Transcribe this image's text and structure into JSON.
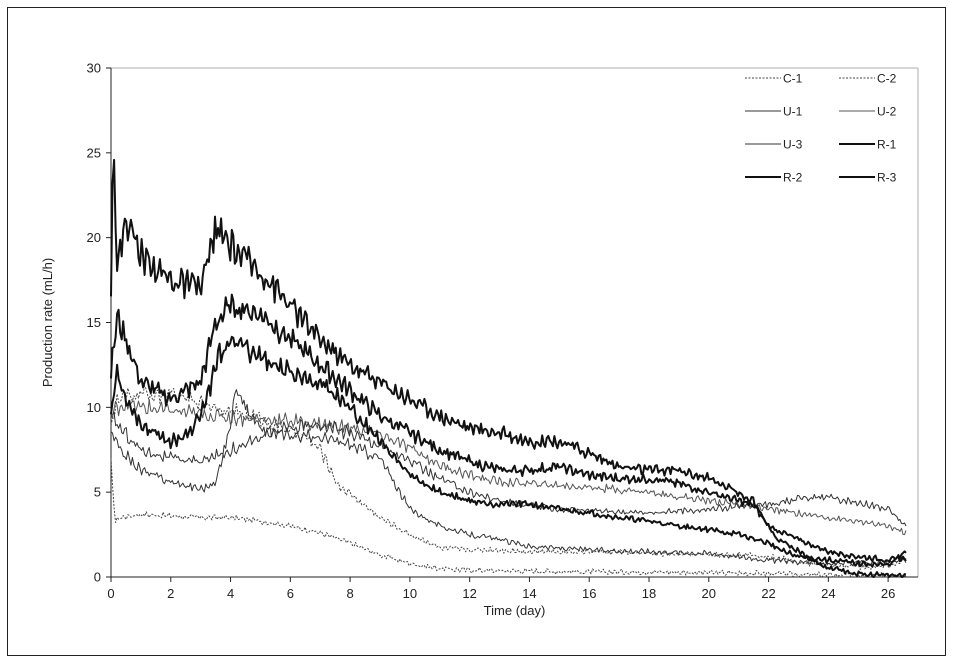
{
  "chart_data": {
    "type": "line",
    "title": "",
    "xlabel": "Time (day)",
    "ylabel": "Production rate (mL/h)",
    "xlim": [
      0,
      27
    ],
    "ylim": [
      0,
      30
    ],
    "xticks": [
      0,
      2,
      4,
      6,
      8,
      10,
      12,
      14,
      16,
      18,
      20,
      22,
      24,
      26
    ],
    "yticks": [
      0,
      5,
      10,
      15,
      20,
      25,
      30
    ],
    "grid": false,
    "legend_position": "top-right",
    "series": [
      {
        "name": "C-1",
        "style": "dashed",
        "width": 1.0,
        "color": "#444444",
        "x": [
          0,
          0.05,
          0.15,
          0.3,
          1,
          2,
          3,
          4,
          5,
          6,
          7,
          8,
          9,
          10,
          11,
          12,
          14,
          16,
          18,
          20,
          22,
          23,
          24,
          25,
          26,
          26.6
        ],
        "y": [
          6.8,
          5.2,
          3.3,
          3.5,
          3.7,
          3.6,
          3.5,
          3.5,
          3.3,
          3.0,
          2.6,
          2.0,
          1.3,
          0.8,
          0.5,
          0.4,
          0.35,
          0.3,
          0.3,
          0.25,
          0.2,
          0.15,
          0.1,
          0.1,
          0.1,
          0.1
        ]
      },
      {
        "name": "C-2",
        "style": "dashed",
        "width": 1.0,
        "color": "#444444",
        "x": [
          0,
          0.2,
          0.5,
          1,
          2,
          3,
          4,
          5,
          6,
          6.5,
          7,
          7.3,
          7.6,
          8,
          8.5,
          9,
          10,
          10.7,
          11,
          12,
          13,
          14,
          16,
          18,
          20,
          21,
          22,
          23,
          24,
          25,
          26,
          26.6
        ],
        "y": [
          9.0,
          10.3,
          10.6,
          10.8,
          10.7,
          10.3,
          9.8,
          9.3,
          8.6,
          8.2,
          7.5,
          6.5,
          5.4,
          4.9,
          4.2,
          3.5,
          2.5,
          2.0,
          1.7,
          1.6,
          1.6,
          1.5,
          1.5,
          1.4,
          1.3,
          1.3,
          1.2,
          0.9,
          0.7,
          0.6,
          0.6,
          1.0
        ]
      },
      {
        "name": "U-1",
        "style": "solid",
        "width": 1.0,
        "color": "#333333",
        "x": [
          0,
          0.3,
          1,
          2,
          3,
          3.5,
          4,
          4.2,
          4.5,
          5,
          6,
          7,
          8,
          9,
          9.5,
          10,
          11,
          12,
          13,
          14,
          16,
          18,
          20,
          22,
          24,
          26,
          26.6
        ],
        "y": [
          8.5,
          7.5,
          6.3,
          5.6,
          5.2,
          5.5,
          9.0,
          11.5,
          10.0,
          8.7,
          8.4,
          8.2,
          7.8,
          7.0,
          5.5,
          4.0,
          3.0,
          2.5,
          2.2,
          1.8,
          1.6,
          1.5,
          1.4,
          1.0,
          0.8,
          0.8,
          1.1
        ]
      },
      {
        "name": "U-2",
        "style": "solid",
        "width": 1.0,
        "color": "#555555",
        "x": [
          0,
          0.2,
          0.5,
          1,
          2,
          3,
          4,
          5,
          6,
          7,
          8,
          9,
          10,
          11,
          12,
          13,
          14,
          16,
          18,
          20,
          21,
          22,
          24,
          26,
          26.6
        ],
        "y": [
          9.5,
          10.0,
          10.2,
          10.0,
          9.8,
          9.6,
          9.4,
          9.3,
          9.2,
          9.0,
          8.8,
          8.4,
          7.6,
          6.6,
          6.0,
          5.6,
          5.5,
          5.3,
          5.0,
          4.5,
          4.3,
          4.0,
          3.5,
          3.0,
          2.6
        ]
      },
      {
        "name": "U-3",
        "style": "solid",
        "width": 1.0,
        "color": "#333333",
        "x": [
          0,
          0.3,
          1,
          2,
          3,
          4,
          5,
          6,
          7,
          8,
          9,
          10,
          11,
          12,
          13,
          14,
          15,
          16,
          18,
          20,
          22,
          23,
          24,
          25,
          26,
          26.6
        ],
        "y": [
          9.5,
          8.8,
          7.5,
          7.0,
          6.8,
          7.5,
          8.2,
          8.8,
          9.0,
          8.5,
          7.8,
          6.8,
          5.8,
          5.0,
          4.5,
          4.2,
          4.0,
          3.9,
          3.8,
          4.0,
          4.3,
          4.6,
          4.7,
          4.4,
          4.0,
          3.0
        ]
      },
      {
        "name": "R-1",
        "style": "solid",
        "width": 2.0,
        "color": "#111111",
        "x": [
          0,
          0.08,
          0.2,
          0.5,
          1,
          2,
          3,
          3.5,
          4,
          5,
          6,
          7,
          8,
          9,
          10,
          11,
          12,
          13,
          14,
          15,
          16,
          17,
          18,
          19,
          20,
          21,
          21.5,
          22,
          22.3,
          23,
          24,
          25,
          26,
          26.6
        ],
        "y": [
          17.5,
          26.3,
          18.0,
          21.2,
          19.0,
          17.5,
          17.0,
          20.5,
          19.5,
          18.0,
          16.0,
          14.0,
          12.5,
          11.5,
          10.5,
          9.5,
          8.8,
          8.5,
          8.0,
          8.0,
          7.3,
          6.5,
          6.3,
          6.3,
          5.8,
          5.0,
          4.5,
          3.0,
          2.2,
          1.5,
          0.5,
          0.2,
          0.1,
          0.1
        ]
      },
      {
        "name": "R-2",
        "style": "solid",
        "width": 2.0,
        "color": "#111111",
        "x": [
          0,
          0.2,
          0.5,
          1,
          2,
          3,
          3.5,
          4,
          5,
          6,
          7,
          8,
          9,
          10,
          11,
          12,
          13,
          14,
          15,
          16,
          17,
          18,
          19,
          20,
          21,
          21.5,
          22,
          23,
          24,
          25,
          26,
          26.6
        ],
        "y": [
          12.0,
          15.3,
          14.0,
          11.5,
          10.5,
          11.5,
          15.0,
          16.0,
          15.5,
          14.0,
          12.5,
          11.0,
          9.5,
          8.5,
          7.5,
          6.8,
          6.3,
          6.3,
          6.5,
          6.0,
          5.8,
          5.8,
          5.5,
          5.0,
          4.5,
          4.2,
          3.0,
          2.2,
          1.5,
          1.2,
          1.0,
          1.1
        ]
      },
      {
        "name": "R-3",
        "style": "solid",
        "width": 2.0,
        "color": "#111111",
        "x": [
          0,
          0.2,
          0.5,
          1,
          2,
          2.7,
          3.2,
          3.6,
          4,
          5,
          6,
          7,
          8,
          9,
          10,
          11,
          12,
          13,
          14,
          15,
          16,
          17,
          18,
          19,
          20,
          21,
          22,
          22.5,
          23,
          24,
          25,
          26,
          26.6
        ],
        "y": [
          9.5,
          12.2,
          10.5,
          9.0,
          8.0,
          8.5,
          10.5,
          13.0,
          14.0,
          13.0,
          12.0,
          11.5,
          10.0,
          8.0,
          6.0,
          5.0,
          4.5,
          4.3,
          4.3,
          4.0,
          3.8,
          3.5,
          3.3,
          3.0,
          2.8,
          2.5,
          2.0,
          1.5,
          1.2,
          1.0,
          0.8,
          0.7,
          1.5
        ]
      }
    ]
  }
}
